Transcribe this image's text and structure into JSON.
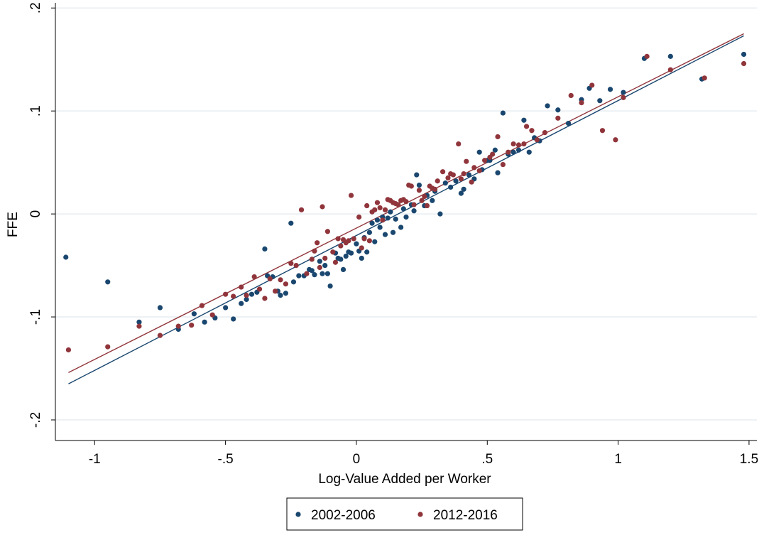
{
  "chart_data": {
    "type": "scatter",
    "xlabel": "Log-Value Added per Worker",
    "ylabel": "FFE",
    "xlim": [
      -1.15,
      1.53
    ],
    "ylim": [
      -0.22,
      0.205
    ],
    "x_ticks": [
      -1,
      -0.5,
      0,
      0.5,
      1,
      1.5
    ],
    "x_tick_labels": [
      "-1",
      "-.5",
      "0",
      ".5",
      "1",
      "1.5"
    ],
    "y_ticks": [
      -0.2,
      -0.1,
      0,
      0.1,
      0.2
    ],
    "y_tick_labels": [
      "-.2",
      "-.1",
      "0",
      ".1",
      ".2"
    ],
    "grid": true,
    "legend_position": "bottom",
    "series": [
      {
        "name": "2002-2006",
        "color": "#1a476f",
        "fit_line": [
          [
            -1.1,
            -0.165
          ],
          [
            1.48,
            0.173
          ]
        ],
        "points": [
          [
            -1.11,
            -0.042
          ],
          [
            -0.95,
            -0.066
          ],
          [
            -0.83,
            -0.105
          ],
          [
            -0.75,
            -0.091
          ],
          [
            -0.68,
            -0.112
          ],
          [
            -0.62,
            -0.097
          ],
          [
            -0.58,
            -0.105
          ],
          [
            -0.54,
            -0.101
          ],
          [
            -0.5,
            -0.091
          ],
          [
            -0.47,
            -0.102
          ],
          [
            -0.44,
            -0.087
          ],
          [
            -0.42,
            -0.083
          ],
          [
            -0.4,
            -0.078
          ],
          [
            -0.38,
            -0.076
          ],
          [
            -0.35,
            -0.034
          ],
          [
            -0.34,
            -0.06
          ],
          [
            -0.32,
            -0.061
          ],
          [
            -0.3,
            -0.075
          ],
          [
            -0.29,
            -0.079
          ],
          [
            -0.27,
            -0.077
          ],
          [
            -0.25,
            -0.009
          ],
          [
            -0.24,
            -0.066
          ],
          [
            -0.22,
            -0.06
          ],
          [
            -0.2,
            -0.06
          ],
          [
            -0.18,
            -0.054
          ],
          [
            -0.17,
            -0.055
          ],
          [
            -0.16,
            -0.059
          ],
          [
            -0.14,
            -0.046
          ],
          [
            -0.13,
            -0.058
          ],
          [
            -0.12,
            -0.05
          ],
          [
            -0.11,
            -0.058
          ],
          [
            -0.1,
            -0.07
          ],
          [
            -0.08,
            -0.038
          ],
          [
            -0.07,
            -0.043
          ],
          [
            -0.06,
            -0.044
          ],
          [
            -0.05,
            -0.054
          ],
          [
            -0.04,
            -0.041
          ],
          [
            -0.03,
            -0.037
          ],
          [
            -0.02,
            -0.038
          ],
          [
            0.0,
            -0.029
          ],
          [
            0.01,
            -0.036
          ],
          [
            0.02,
            -0.043
          ],
          [
            0.03,
            -0.023
          ],
          [
            0.04,
            -0.037
          ],
          [
            0.05,
            -0.018
          ],
          [
            0.06,
            -0.009
          ],
          [
            0.07,
            -0.027
          ],
          [
            0.08,
            -0.006
          ],
          [
            0.09,
            -0.013
          ],
          [
            0.1,
            -0.003
          ],
          [
            0.11,
            -0.02
          ],
          [
            0.12,
            -0.004
          ],
          [
            0.13,
            0.002
          ],
          [
            0.14,
            -0.018
          ],
          [
            0.15,
            -0.005
          ],
          [
            0.17,
            -0.013
          ],
          [
            0.18,
            0.005
          ],
          [
            0.19,
            -0.003
          ],
          [
            0.21,
            0.009
          ],
          [
            0.22,
            0.003
          ],
          [
            0.23,
            0.038
          ],
          [
            0.24,
            0.028
          ],
          [
            0.26,
            0.008
          ],
          [
            0.27,
            0.018
          ],
          [
            0.29,
            0.013
          ],
          [
            0.3,
            0.022
          ],
          [
            0.32,
            0.0
          ],
          [
            0.34,
            0.03
          ],
          [
            0.36,
            0.026
          ],
          [
            0.38,
            0.032
          ],
          [
            0.4,
            0.02
          ],
          [
            0.41,
            0.024
          ],
          [
            0.43,
            0.038
          ],
          [
            0.45,
            0.034
          ],
          [
            0.47,
            0.06
          ],
          [
            0.48,
            0.043
          ],
          [
            0.5,
            0.052
          ],
          [
            0.51,
            0.052
          ],
          [
            0.53,
            0.062
          ],
          [
            0.54,
            0.04
          ],
          [
            0.56,
            0.098
          ],
          [
            0.58,
            0.058
          ],
          [
            0.6,
            0.06
          ],
          [
            0.62,
            0.062
          ],
          [
            0.64,
            0.091
          ],
          [
            0.66,
            0.06
          ],
          [
            0.68,
            0.074
          ],
          [
            0.7,
            0.071
          ],
          [
            0.73,
            0.105
          ],
          [
            0.77,
            0.101
          ],
          [
            0.81,
            0.088
          ],
          [
            0.86,
            0.111
          ],
          [
            0.89,
            0.122
          ],
          [
            0.93,
            0.11
          ],
          [
            0.97,
            0.121
          ],
          [
            1.02,
            0.118
          ],
          [
            1.1,
            0.151
          ],
          [
            1.2,
            0.153
          ],
          [
            1.32,
            0.131
          ],
          [
            1.48,
            0.155
          ]
        ]
      },
      {
        "name": "2012-2016",
        "color": "#90353b",
        "fit_line": [
          [
            -1.1,
            -0.154
          ],
          [
            1.48,
            0.175
          ]
        ],
        "points": [
          [
            -1.1,
            -0.132
          ],
          [
            -0.95,
            -0.129
          ],
          [
            -0.83,
            -0.109
          ],
          [
            -0.75,
            -0.118
          ],
          [
            -0.68,
            -0.109
          ],
          [
            -0.63,
            -0.108
          ],
          [
            -0.59,
            -0.089
          ],
          [
            -0.55,
            -0.098
          ],
          [
            -0.5,
            -0.078
          ],
          [
            -0.47,
            -0.08
          ],
          [
            -0.44,
            -0.071
          ],
          [
            -0.42,
            -0.079
          ],
          [
            -0.39,
            -0.061
          ],
          [
            -0.37,
            -0.073
          ],
          [
            -0.35,
            -0.082
          ],
          [
            -0.33,
            -0.063
          ],
          [
            -0.31,
            -0.075
          ],
          [
            -0.29,
            -0.064
          ],
          [
            -0.27,
            -0.068
          ],
          [
            -0.25,
            -0.048
          ],
          [
            -0.23,
            -0.05
          ],
          [
            -0.21,
            0.004
          ],
          [
            -0.19,
            -0.058
          ],
          [
            -0.17,
            -0.044
          ],
          [
            -0.16,
            -0.036
          ],
          [
            -0.15,
            -0.028
          ],
          [
            -0.14,
            -0.052
          ],
          [
            -0.13,
            0.007
          ],
          [
            -0.12,
            -0.043
          ],
          [
            -0.11,
            -0.017
          ],
          [
            -0.09,
            -0.037
          ],
          [
            -0.08,
            -0.047
          ],
          [
            -0.07,
            -0.024
          ],
          [
            -0.06,
            -0.031
          ],
          [
            -0.05,
            -0.025
          ],
          [
            -0.04,
            -0.028
          ],
          [
            -0.03,
            -0.026
          ],
          [
            -0.02,
            0.018
          ],
          [
            -0.01,
            -0.024
          ],
          [
            0.01,
            -0.003
          ],
          [
            0.02,
            -0.033
          ],
          [
            0.03,
            -0.024
          ],
          [
            0.04,
            0.008
          ],
          [
            0.05,
            -0.026
          ],
          [
            0.06,
            0.002
          ],
          [
            0.07,
            0.004
          ],
          [
            0.08,
            0.011
          ],
          [
            0.09,
            0.006
          ],
          [
            0.1,
            -0.006
          ],
          [
            0.11,
            0.004
          ],
          [
            0.12,
            0.014
          ],
          [
            0.13,
            0.013
          ],
          [
            0.14,
            0.011
          ],
          [
            0.15,
            0.01
          ],
          [
            0.16,
            0.009
          ],
          [
            0.17,
            0.013
          ],
          [
            0.18,
            0.014
          ],
          [
            0.19,
            0.012
          ],
          [
            0.2,
            0.028
          ],
          [
            0.21,
            0.027
          ],
          [
            0.22,
            0.009
          ],
          [
            0.24,
            0.023
          ],
          [
            0.25,
            0.013
          ],
          [
            0.26,
            0.017
          ],
          [
            0.27,
            0.008
          ],
          [
            0.28,
            0.027
          ],
          [
            0.29,
            0.025
          ],
          [
            0.3,
            0.024
          ],
          [
            0.31,
            0.032
          ],
          [
            0.33,
            0.041
          ],
          [
            0.35,
            0.035
          ],
          [
            0.36,
            0.039
          ],
          [
            0.37,
            0.038
          ],
          [
            0.39,
            0.068
          ],
          [
            0.4,
            0.034
          ],
          [
            0.41,
            0.039
          ],
          [
            0.42,
            0.051
          ],
          [
            0.44,
            0.031
          ],
          [
            0.45,
            0.045
          ],
          [
            0.47,
            0.042
          ],
          [
            0.49,
            0.052
          ],
          [
            0.51,
            0.055
          ],
          [
            0.52,
            0.058
          ],
          [
            0.54,
            0.075
          ],
          [
            0.56,
            0.048
          ],
          [
            0.58,
            0.06
          ],
          [
            0.6,
            0.068
          ],
          [
            0.62,
            0.067
          ],
          [
            0.64,
            0.068
          ],
          [
            0.65,
            0.085
          ],
          [
            0.67,
            0.081
          ],
          [
            0.69,
            0.072
          ],
          [
            0.72,
            0.079
          ],
          [
            0.77,
            0.093
          ],
          [
            0.82,
            0.115
          ],
          [
            0.86,
            0.108
          ],
          [
            0.9,
            0.125
          ],
          [
            0.94,
            0.081
          ],
          [
            0.99,
            0.072
          ],
          [
            1.02,
            0.113
          ],
          [
            1.11,
            0.153
          ],
          [
            1.2,
            0.14
          ],
          [
            1.33,
            0.132
          ],
          [
            1.48,
            0.146
          ]
        ]
      }
    ]
  }
}
